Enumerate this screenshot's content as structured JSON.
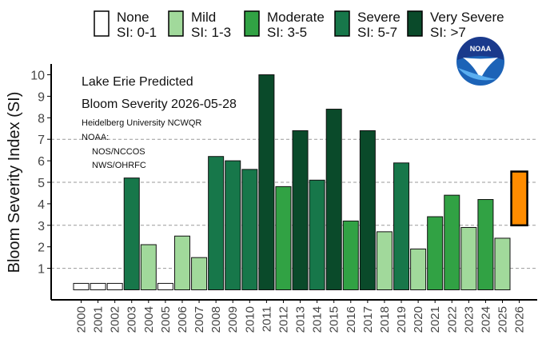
{
  "legend": [
    {
      "name": "None",
      "range": "SI: 0-1",
      "color": "#ffffff"
    },
    {
      "name": "Mild",
      "range": "SI: 1-3",
      "color": "#a1d99b"
    },
    {
      "name": "Moderate",
      "range": "SI: 3-5",
      "color": "#31a244"
    },
    {
      "name": "Severe",
      "range": "SI: 5-7",
      "color": "#17774a"
    },
    {
      "name": "Very Severe",
      "range": "SI: >7",
      "color": "#0a4a2a"
    }
  ],
  "annotation": {
    "title_line1": "Lake Erie Predicted",
    "title_line2": "Bloom Severity 2026-05-28",
    "credits": [
      "Heidelberg University NCWQR",
      "NOAA:",
      "NOS/NCCOS",
      "NWS/OHRFC"
    ]
  },
  "logo": {
    "text": "NOAA",
    "icon": "noaa-logo"
  },
  "chart_data": {
    "type": "bar",
    "ylabel": "Bloom Severity Index (SI)",
    "xlabel": "",
    "ylim": [
      0,
      10.4
    ],
    "yticks": [
      1,
      2,
      3,
      4,
      5,
      6,
      7,
      8,
      9,
      10
    ],
    "grid": {
      "horizontal_dashed_at": [
        1,
        3,
        5,
        7
      ]
    },
    "categories": [
      "2000",
      "2001",
      "2002",
      "2003",
      "2004",
      "2005",
      "2006",
      "2007",
      "2008",
      "2009",
      "2010",
      "2011",
      "2012",
      "2013",
      "2014",
      "2015",
      "2016",
      "2017",
      "2018",
      "2019",
      "2020",
      "2021",
      "2022",
      "2023",
      "2024",
      "2025"
    ],
    "values": [
      0.3,
      0.3,
      0.3,
      5.2,
      2.1,
      0.3,
      2.5,
      1.5,
      6.2,
      6.0,
      5.6,
      10.0,
      4.8,
      7.4,
      5.1,
      8.4,
      3.2,
      7.4,
      2.7,
      5.9,
      1.9,
      3.4,
      4.4,
      2.9,
      4.2,
      2.4
    ],
    "forecast": {
      "year": "2026",
      "low": 3.0,
      "high": 5.5,
      "color": "#ff8c00"
    }
  }
}
